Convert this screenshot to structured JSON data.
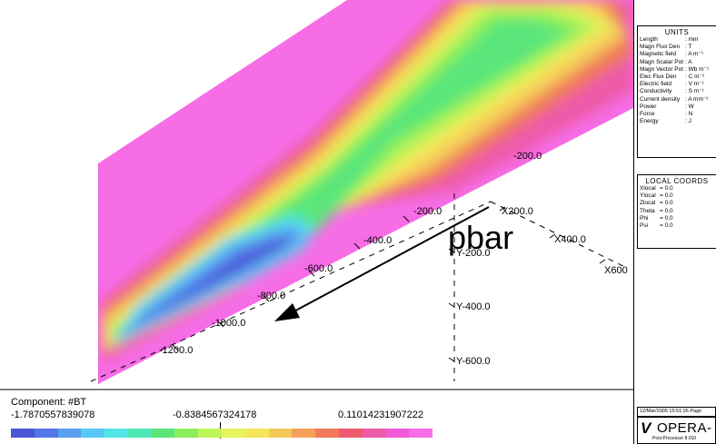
{
  "viewport": {
    "annotation": "pbar",
    "x_axis_labels": [
      "X200.0",
      "X400.0",
      "X600"
    ],
    "y_axis_labels": [
      "Y-200.0",
      "Y-400.0",
      "Y-600.0"
    ],
    "z_axis_labels": [
      "-200.0",
      "-200.0",
      "-400.0",
      "-600.0",
      "-800.0",
      "-1000.0",
      "-1200.0"
    ]
  },
  "legend": {
    "component": "Component: #BT",
    "min": "-1.7870557839078",
    "mid": "-0.8384567324178",
    "max": "0.11014231907222",
    "colors": [
      "#4a55d8",
      "#5577e6",
      "#5aa0f0",
      "#58c8f5",
      "#50e6e6",
      "#4ee6b4",
      "#5ae67a",
      "#8aee5a",
      "#bdf55a",
      "#e6f55a",
      "#f5e65a",
      "#f5c85a",
      "#f5a05a",
      "#f07a5a",
      "#ee5a6e",
      "#ee5aa8",
      "#f05ad8",
      "#f66de6"
    ]
  },
  "units": {
    "title": "UNITS",
    "rows": [
      {
        "k": "Length",
        "v": ": mm"
      },
      {
        "k": "Magn Flux Den",
        "v": ": T"
      },
      {
        "k": "Magnetic field",
        "v": ": A m⁻¹"
      },
      {
        "k": "Magn Scalar Pot",
        "v": ": A"
      },
      {
        "k": "Magn Vector Pot",
        "v": ": Wb m⁻¹"
      },
      {
        "k": "Elec Flux Den",
        "v": ": C m⁻²"
      },
      {
        "k": "Electric field",
        "v": ": V m⁻¹"
      },
      {
        "k": "Conductivity",
        "v": ": S m⁻¹"
      },
      {
        "k": "Current density",
        "v": ": A mm⁻²"
      },
      {
        "k": "Power",
        "v": ": W"
      },
      {
        "k": "Force",
        "v": ": N"
      },
      {
        "k": "Energy",
        "v": ": J"
      }
    ]
  },
  "local_coords": {
    "title": "LOCAL COORDS",
    "rows": [
      {
        "k": "Xlocal",
        "v": "= 0.0"
      },
      {
        "k": "Ylocal",
        "v": "= 0.0"
      },
      {
        "k": "Zlocal",
        "v": "= 0.0"
      },
      {
        "k": "Theta",
        "v": "= 0.0"
      },
      {
        "k": "Phi",
        "v": "= 0.0"
      },
      {
        "k": "Psi",
        "v": "= 0.0"
      }
    ]
  },
  "footer": {
    "timestamp": "12/Mar/2005 15:51:26 Page",
    "logo_mark": "V",
    "logo_text": "OPERA-",
    "logo_sub": "Post-Processor 8.010"
  }
}
